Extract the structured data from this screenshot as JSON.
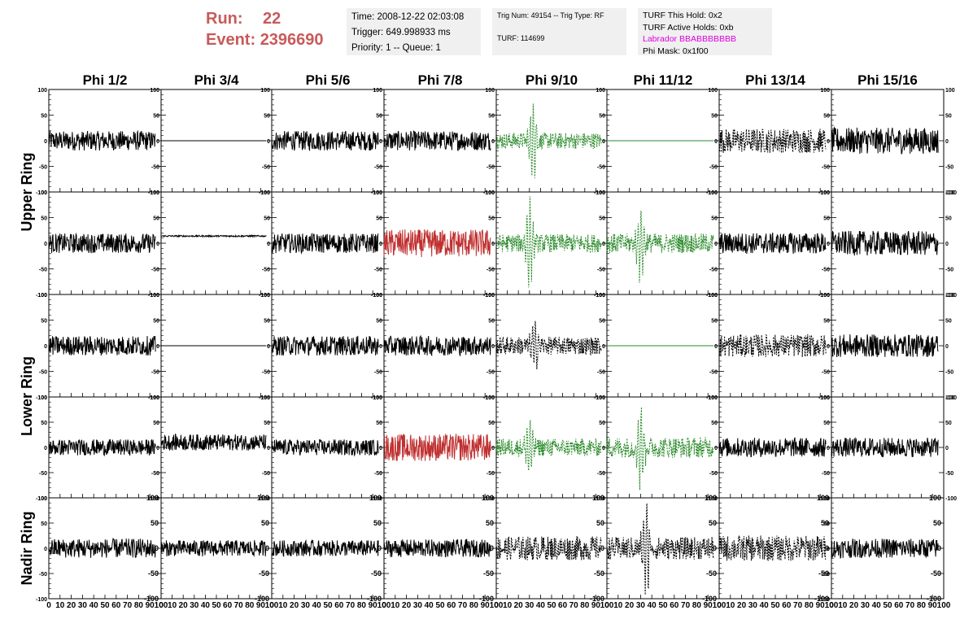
{
  "header": {
    "run_label": "Run:",
    "run_value": "22",
    "event_label": "Event:",
    "event_value": "2396690",
    "time_text": "Time: 2008-12-22 02:03:08",
    "trigger_text": "Trigger: 649.998933 ms",
    "priority_text": "Priority: 1 -- Queue: 1",
    "trig_num_text": "Trig Num: 49154 -- Trig Type: RF",
    "turf_text": "TURF: 114699",
    "turf_hold_text": "TURF This Hold: 0x2",
    "turf_active_text": "TURF Active Holds: 0xb",
    "labrador_text": "Labrador BBABBBBBBB",
    "phi_mask_text": "Phi Mask: 0x1f00"
  },
  "colors": {
    "run_text": "#c85a5a",
    "labrador_text": "#e000e0",
    "trace_black": "#000000",
    "trace_red": "#c03030",
    "trace_green": "#2a8a2a"
  },
  "chart_data": {
    "type": "line",
    "columns": [
      "Phi 1/2",
      "Phi 3/4",
      "Phi 5/6",
      "Phi 7/8",
      "Phi 9/10",
      "Phi 11/12",
      "Phi 13/14",
      "Phi 15/16"
    ],
    "rings": [
      "Upper Ring",
      "Lower Ring",
      "Nadir Ring"
    ],
    "ring_rows": [
      2,
      2,
      1
    ],
    "xlim": [
      0,
      100
    ],
    "ylim": [
      -100,
      100
    ],
    "x_ticks": [
      0,
      10,
      20,
      30,
      40,
      50,
      60,
      70,
      80,
      90,
      100
    ],
    "x_tick_labels": [
      "0",
      "10",
      "20",
      "30",
      "40",
      "50",
      "60",
      "70",
      "80",
      "90",
      "100"
    ],
    "y_ticks": [
      -100,
      -50,
      0,
      50,
      100
    ],
    "y_tick_labels": [
      "-100",
      "-50",
      "0",
      "50",
      "100"
    ],
    "x_range": [
      0,
      95
    ],
    "panels": [
      [
        {
          "style": "noise",
          "color": "black",
          "amp": 12
        },
        {
          "style": "flat",
          "color": "black",
          "offset": 0
        },
        {
          "style": "noise",
          "color": "black",
          "amp": 12
        },
        {
          "style": "noise",
          "color": "black",
          "amp": 12
        },
        {
          "style": "pulse",
          "color": "green",
          "amp": 10,
          "peak": 80,
          "center": 33,
          "dashed": true
        },
        {
          "style": "flat",
          "color": "green",
          "offset": 0
        },
        {
          "style": "noise",
          "color": "black",
          "amp": 15,
          "dashed": true
        },
        {
          "style": "noise",
          "color": "black",
          "amp": 16
        }
      ],
      [
        {
          "style": "noise",
          "color": "black",
          "amp": 12
        },
        {
          "style": "flat",
          "color": "black",
          "offset": 14,
          "amp": 1.5
        },
        {
          "style": "noise",
          "color": "black",
          "amp": 12
        },
        {
          "style": "noise",
          "color": "red",
          "amp": 17
        },
        {
          "style": "pulse",
          "color": "green",
          "amp": 11,
          "peak": 80,
          "center": 30,
          "dashed": true
        },
        {
          "style": "pulse",
          "color": "green",
          "amp": 12,
          "peak": 70,
          "center": 30,
          "dashed": true
        },
        {
          "style": "noise",
          "color": "black",
          "amp": 13
        },
        {
          "style": "noise",
          "color": "black",
          "amp": 15
        }
      ],
      [
        {
          "style": "noise",
          "color": "black",
          "amp": 12
        },
        {
          "style": "flat",
          "color": "black",
          "offset": 0
        },
        {
          "style": "noise",
          "color": "black",
          "amp": 12
        },
        {
          "style": "noise",
          "color": "black",
          "amp": 12
        },
        {
          "style": "pulse",
          "color": "black",
          "amp": 11,
          "peak": 45,
          "center": 35,
          "dashed": true
        },
        {
          "style": "flat",
          "color": "green",
          "offset": 0
        },
        {
          "style": "noise",
          "color": "black",
          "amp": 14,
          "dashed": true
        },
        {
          "style": "noise",
          "color": "black",
          "amp": 14
        }
      ],
      [
        {
          "style": "noise",
          "color": "black",
          "amp": 10
        },
        {
          "style": "noise",
          "color": "black",
          "amp": 10,
          "offset": 10
        },
        {
          "style": "noise",
          "color": "black",
          "amp": 10
        },
        {
          "style": "noise",
          "color": "red",
          "amp": 17
        },
        {
          "style": "pulse",
          "color": "green",
          "amp": 11,
          "peak": 55,
          "center": 30,
          "dashed": true
        },
        {
          "style": "pulse",
          "color": "green",
          "amp": 13,
          "peak": 85,
          "center": 30,
          "dashed": true
        },
        {
          "style": "noise",
          "color": "black",
          "amp": 12
        },
        {
          "style": "noise",
          "color": "black",
          "amp": 12
        }
      ],
      [
        {
          "style": "noise",
          "color": "black",
          "amp": 12
        },
        {
          "style": "noise",
          "color": "black",
          "amp": 10
        },
        {
          "style": "noise",
          "color": "black",
          "amp": 10
        },
        {
          "style": "noise",
          "color": "black",
          "amp": 11
        },
        {
          "style": "noise",
          "color": "black",
          "amp": 15,
          "dashed": true
        },
        {
          "style": "pulse",
          "color": "black",
          "amp": 14,
          "peak": 85,
          "center": 35,
          "dashed": true
        },
        {
          "style": "noise",
          "color": "black",
          "amp": 16,
          "dashed": true
        },
        {
          "style": "noise",
          "color": "black",
          "amp": 12
        }
      ]
    ]
  }
}
